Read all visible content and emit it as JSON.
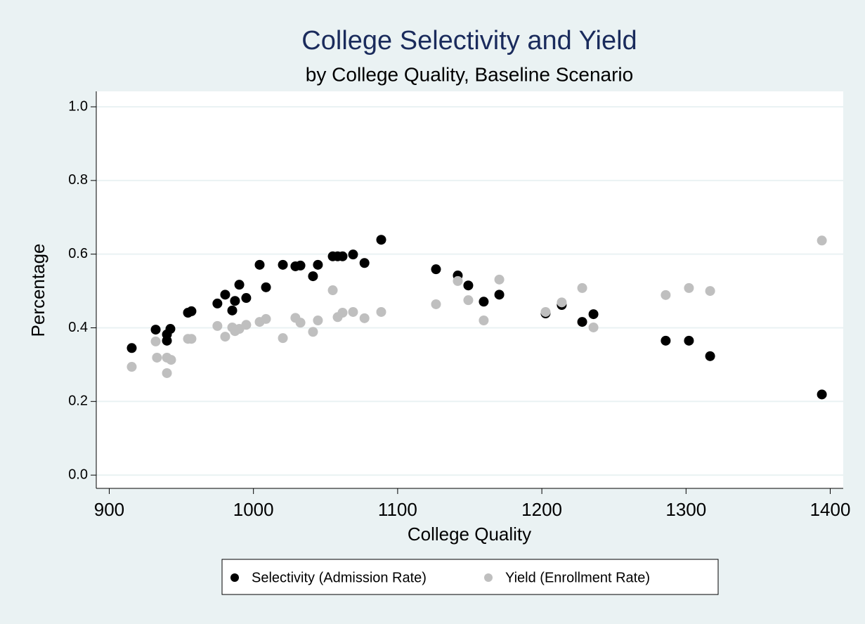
{
  "chart_data": {
    "type": "scatter",
    "title": "College Selectivity and Yield",
    "subtitle": "by College Quality, Baseline Scenario",
    "x_label": "College Quality",
    "y_label": "Percentage",
    "xlim": [
      891,
      1409
    ],
    "ylim": [
      -0.036,
      1.042
    ],
    "xticks": [
      900,
      1000,
      1100,
      1200,
      1300,
      1400
    ],
    "yticks": [
      {
        "value": 0,
        "label": "0.0"
      },
      {
        "value": 0.2,
        "label": "0.2"
      },
      {
        "value": 0.4,
        "label": "0.4"
      },
      {
        "value": 0.6,
        "label": "0.6"
      },
      {
        "value": 0.8,
        "label": "0.8"
      },
      {
        "value": 1,
        "label": "1.0"
      }
    ],
    "grid": true,
    "legend_position": "bottom",
    "series": [
      {
        "name": "Selectivity (Admission Rate)",
        "color": "#000000",
        "x": [
          915.6,
          932.2,
          940,
          940,
          942.4,
          954.6,
          957,
          975,
          980.4,
          985.3,
          987.2,
          990.2,
          995,
          1004.3,
          1008.7,
          1020.4,
          1029.1,
          1032.6,
          1041.3,
          1044.7,
          1055,
          1058.4,
          1061.8,
          1069.1,
          1077,
          1088.6,
          1126.6,
          1141.7,
          1149,
          1159.7,
          1170.5,
          1202.6,
          1213.8,
          1228,
          1235.8,
          1285.9,
          1302,
          1316.7,
          1394.2
        ],
        "values": [
          0.345,
          0.395,
          0.382,
          0.365,
          0.397,
          0.441,
          0.445,
          0.466,
          0.49,
          0.447,
          0.473,
          0.517,
          0.481,
          0.571,
          0.51,
          0.571,
          0.567,
          0.569,
          0.54,
          0.571,
          0.594,
          0.594,
          0.594,
          0.599,
          0.576,
          0.639,
          0.559,
          0.542,
          0.515,
          0.471,
          0.49,
          0.439,
          0.462,
          0.416,
          0.437,
          0.365,
          0.365,
          0.323,
          0.219
        ]
      },
      {
        "name": "Yield (Enrollment Rate)",
        "color": "#bfbfbf",
        "x": [
          915.6,
          932.2,
          933.1,
          940,
          940,
          942.9,
          954.6,
          957,
          975,
          980.4,
          985.3,
          987.2,
          990.2,
          995,
          1004.3,
          1008.7,
          1020.4,
          1029.1,
          1032.6,
          1041.3,
          1044.7,
          1055,
          1058.4,
          1061.8,
          1069.1,
          1077,
          1088.6,
          1126.6,
          1141.7,
          1149,
          1159.7,
          1170.5,
          1202.6,
          1213.8,
          1228,
          1235.8,
          1285.9,
          1302,
          1316.7,
          1394.2
        ],
        "values": [
          0.294,
          0.363,
          0.319,
          0.319,
          0.277,
          0.313,
          0.37,
          0.37,
          0.405,
          0.376,
          0.401,
          0.391,
          0.397,
          0.408,
          0.416,
          0.424,
          0.372,
          0.427,
          0.414,
          0.389,
          0.42,
          0.502,
          0.429,
          0.441,
          0.443,
          0.426,
          0.443,
          0.464,
          0.527,
          0.475,
          0.42,
          0.531,
          0.443,
          0.469,
          0.508,
          0.401,
          0.489,
          0.508,
          0.5,
          0.637
        ]
      }
    ]
  }
}
